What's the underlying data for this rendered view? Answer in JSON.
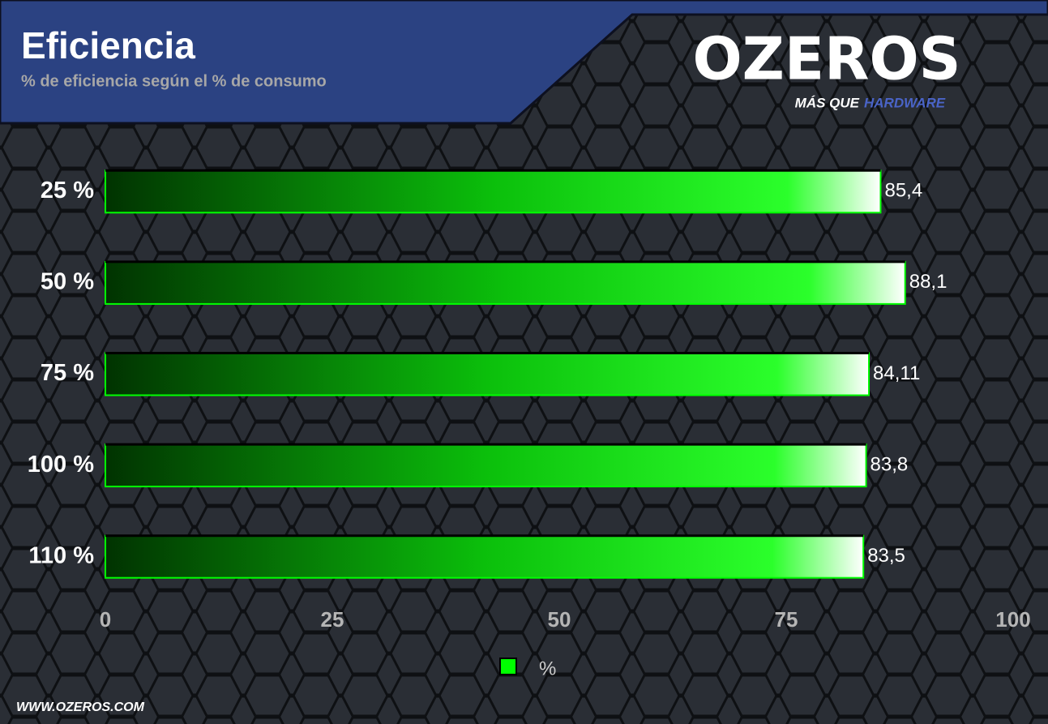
{
  "chart_data": {
    "type": "hbar",
    "title": "Eficiencia",
    "subtitle": "% de eficiencia según el % de consumo",
    "categories": [
      "25 %",
      "50 %",
      "75 %",
      "100 %",
      "110 %"
    ],
    "series": [
      {
        "name": "%",
        "color": "#00ff00",
        "values": [
          85.4,
          88.1,
          84.11,
          83.8,
          83.5
        ],
        "value_labels": [
          "85,4",
          "88,1",
          "84,11",
          "83,8",
          "83,5"
        ]
      }
    ],
    "xlim": [
      0,
      100
    ],
    "xticks": [
      0,
      25,
      50,
      75,
      100
    ],
    "grid": false,
    "legend": "bottom"
  },
  "branding": {
    "logo": "OZEROS",
    "tagline_1": "MÁS QUE",
    "tagline_2": "HARDWARE",
    "url": "WWW.OZEROS.COM"
  }
}
